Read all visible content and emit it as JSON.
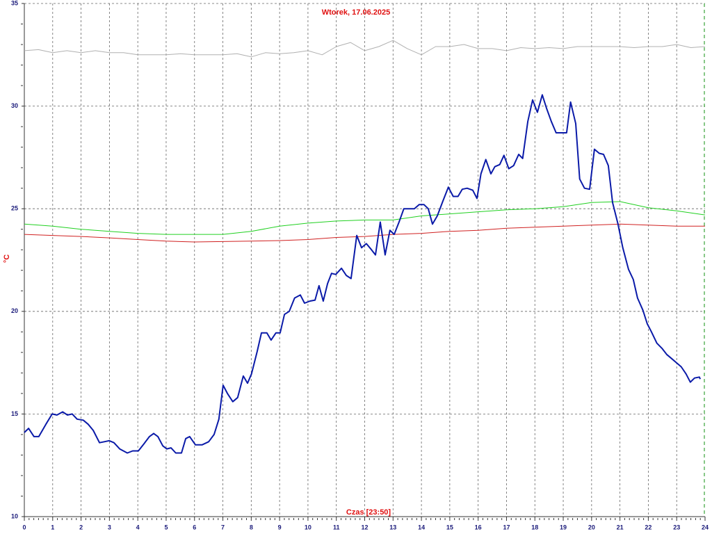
{
  "chart_data": {
    "type": "line",
    "title": "Wtorek, 17.06.2025",
    "ylabel": "°C",
    "xlabel": "Czas [23:50]",
    "xlim": [
      0,
      24
    ],
    "ylim": [
      10,
      35
    ],
    "xticks": [
      0,
      1,
      2,
      3,
      4,
      5,
      6,
      7,
      8,
      9,
      10,
      11,
      12,
      13,
      14,
      15,
      16,
      17,
      18,
      19,
      20,
      21,
      22,
      23,
      24
    ],
    "yticks": [
      10,
      15,
      20,
      25,
      30,
      35
    ],
    "grid": true,
    "series": [
      {
        "color": "#b0b0b0",
        "width": 1,
        "x": [
          0,
          0.5,
          1,
          1.5,
          2,
          2.5,
          3,
          3.5,
          4,
          4.5,
          5,
          5.5,
          6,
          6.5,
          7,
          7.5,
          8,
          8.5,
          9,
          9.5,
          10,
          10.5,
          11,
          11.5,
          12,
          12.5,
          13,
          13.5,
          14,
          14.5,
          15,
          15.5,
          16,
          16.5,
          17,
          17.5,
          18,
          18.5,
          19,
          19.5,
          20,
          20.5,
          21,
          21.5,
          22,
          22.5,
          23,
          23.5,
          24
        ],
        "values": [
          32.7,
          32.75,
          32.6,
          32.7,
          32.6,
          32.7,
          32.6,
          32.6,
          32.5,
          32.5,
          32.5,
          32.55,
          32.5,
          32.5,
          32.5,
          32.55,
          32.4,
          32.6,
          32.55,
          32.6,
          32.7,
          32.5,
          32.9,
          33.1,
          32.7,
          32.9,
          33.2,
          32.8,
          32.5,
          32.9,
          32.9,
          33.0,
          32.8,
          32.8,
          32.7,
          32.85,
          32.8,
          32.85,
          32.8,
          32.9,
          32.9,
          32.9,
          32.9,
          32.85,
          32.9,
          32.9,
          33.0,
          32.85,
          32.9
        ]
      },
      {
        "color": "#20d020",
        "width": 1,
        "x": [
          0,
          1,
          2,
          3,
          4,
          5,
          6,
          7,
          8,
          9,
          10,
          11,
          12,
          13,
          14,
          15,
          16,
          17,
          18,
          19,
          20,
          21,
          22,
          23,
          24
        ],
        "values": [
          24.25,
          24.15,
          24.0,
          23.9,
          23.8,
          23.75,
          23.75,
          23.75,
          23.9,
          24.15,
          24.3,
          24.4,
          24.45,
          24.45,
          24.65,
          24.75,
          24.85,
          24.95,
          25.0,
          25.1,
          25.3,
          25.35,
          25.05,
          24.9,
          24.7
        ]
      },
      {
        "color": "#d02020",
        "width": 1,
        "x": [
          0,
          1,
          2,
          3,
          4,
          5,
          6,
          7,
          8,
          9,
          10,
          11,
          12,
          13,
          14,
          15,
          16,
          17,
          18,
          19,
          20,
          21,
          22,
          23,
          24
        ],
        "values": [
          23.75,
          23.7,
          23.65,
          23.58,
          23.5,
          23.42,
          23.38,
          23.4,
          23.42,
          23.45,
          23.5,
          23.6,
          23.65,
          23.75,
          23.8,
          23.9,
          23.95,
          24.05,
          24.1,
          24.15,
          24.2,
          24.25,
          24.2,
          24.15,
          24.15
        ]
      },
      {
        "color": "#0a1aa8",
        "width": 2,
        "x": [
          0,
          0.15,
          0.34,
          0.51,
          0.76,
          0.98,
          1.15,
          1.35,
          1.52,
          1.69,
          1.86,
          2.08,
          2.25,
          2.43,
          2.65,
          2.82,
          2.99,
          3.16,
          3.36,
          3.63,
          3.82,
          4.02,
          4.22,
          4.41,
          4.56,
          4.71,
          4.88,
          5.02,
          5.17,
          5.34,
          5.54,
          5.69,
          5.83,
          6.03,
          6.27,
          6.5,
          6.69,
          6.86,
          7.01,
          7.16,
          7.35,
          7.52,
          7.72,
          7.87,
          8.01,
          8.21,
          8.36,
          8.55,
          8.7,
          8.87,
          9.02,
          9.17,
          9.34,
          9.53,
          9.73,
          9.88,
          10.07,
          10.25,
          10.39,
          10.54,
          10.69,
          10.83,
          10.98,
          11.18,
          11.35,
          11.52,
          11.72,
          11.89,
          12.06,
          12.21,
          12.38,
          12.55,
          12.72,
          12.89,
          13.04,
          13.21,
          13.38,
          13.55,
          13.75,
          13.92,
          14.09,
          14.24,
          14.39,
          14.56,
          14.75,
          14.95,
          15.12,
          15.29,
          15.44,
          15.61,
          15.81,
          15.96,
          16.1,
          16.27,
          16.45,
          16.59,
          16.76,
          16.91,
          17.08,
          17.25,
          17.43,
          17.57,
          17.75,
          17.92,
          18.09,
          18.26,
          18.41,
          18.58,
          18.75,
          18.95,
          19.12,
          19.26,
          19.44,
          19.58,
          19.75,
          19.93,
          20.1,
          20.27,
          20.42,
          20.59,
          20.74,
          20.93,
          21.1,
          21.3,
          21.47,
          21.62,
          21.81,
          21.96,
          22.11,
          22.3,
          22.48,
          22.65,
          22.82,
          22.99,
          23.16,
          23.33,
          23.48,
          23.63,
          23.8,
          23.83
        ],
        "values": [
          14.1,
          14.3,
          13.9,
          13.9,
          14.5,
          15.0,
          14.95,
          15.1,
          14.95,
          15.0,
          14.75,
          14.7,
          14.5,
          14.2,
          13.6,
          13.65,
          13.7,
          13.6,
          13.3,
          13.1,
          13.2,
          13.2,
          13.55,
          13.9,
          14.05,
          13.9,
          13.45,
          13.3,
          13.35,
          13.1,
          13.1,
          13.8,
          13.9,
          13.5,
          13.5,
          13.65,
          14.0,
          14.75,
          16.4,
          16.0,
          15.6,
          15.8,
          16.85,
          16.5,
          16.95,
          18.05,
          18.95,
          18.95,
          18.6,
          18.95,
          18.95,
          19.85,
          20.0,
          20.65,
          20.8,
          20.4,
          20.5,
          20.55,
          21.25,
          20.5,
          21.35,
          21.85,
          21.8,
          22.1,
          21.75,
          21.6,
          23.7,
          23.1,
          23.3,
          23.05,
          22.75,
          24.35,
          22.75,
          23.95,
          23.75,
          24.35,
          25.0,
          25.0,
          25.0,
          25.2,
          25.2,
          25.0,
          24.25,
          24.65,
          25.35,
          26.05,
          25.6,
          25.6,
          25.95,
          26.0,
          25.9,
          25.5,
          26.7,
          27.4,
          26.7,
          27.05,
          27.15,
          27.6,
          26.95,
          27.1,
          27.65,
          27.45,
          29.25,
          30.3,
          29.7,
          30.55,
          29.9,
          29.25,
          28.7,
          28.7,
          28.7,
          30.2,
          29.15,
          26.45,
          26.0,
          25.95,
          27.9,
          27.7,
          27.65,
          27.1,
          25.3,
          24.25,
          23.1,
          22.05,
          21.55,
          20.65,
          20.05,
          19.4,
          19.0,
          18.45,
          18.2,
          17.9,
          17.7,
          17.5,
          17.3,
          16.95,
          16.55,
          16.75,
          16.8,
          16.7
        ]
      }
    ]
  }
}
